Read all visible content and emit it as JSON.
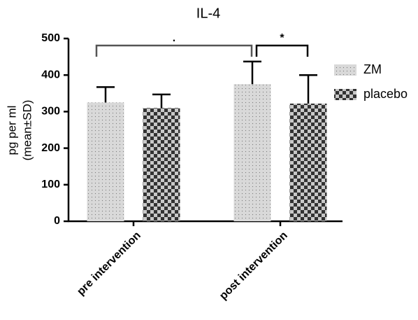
{
  "chart_data": {
    "type": "bar",
    "title": "IL-4",
    "y_label": [
      "pg per ml",
      "(mean±SD)"
    ],
    "categories": [
      "pre intervention",
      "post intervention"
    ],
    "series": [
      {
        "name": "ZM",
        "color": "#d9d9d9",
        "pattern": "dots",
        "values": [
          325,
          375
        ],
        "errors": [
          42,
          62
        ]
      },
      {
        "name": "placebo",
        "color": "#333333",
        "pattern": "checker",
        "values": [
          310,
          322
        ],
        "errors": [
          37,
          78
        ]
      }
    ],
    "ylim": [
      0,
      500
    ],
    "yticks": [
      0,
      100,
      200,
      300,
      400,
      500
    ],
    "annotations": [
      ".",
      "*"
    ]
  }
}
